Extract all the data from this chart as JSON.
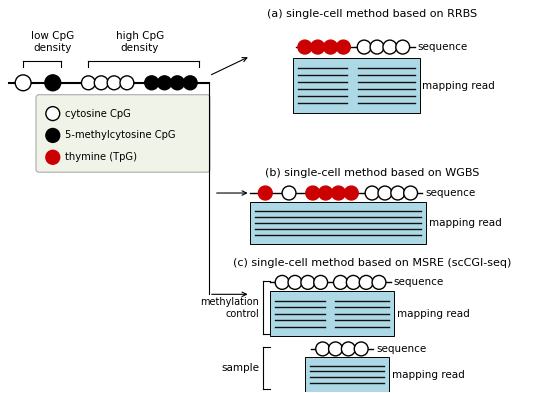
{
  "bg_color": "#ffffff",
  "title_a": "(a) single-cell method based on RRBS",
  "title_b": "(b) single-cell method based on WGBS",
  "title_c": "(c) single-cell method based on MSRE (scCGI-seq)",
  "legend_items": [
    {
      "label": "cytosine CpG",
      "fill": "white",
      "edge": "black"
    },
    {
      "label": "5-methylcytosine CpG",
      "fill": "black",
      "edge": "black"
    },
    {
      "label": "thymine (TpG)",
      "fill": "#cc0000",
      "edge": "#cc0000"
    }
  ],
  "low_cpg_label": "low CpG\ndensity",
  "high_cpg_label": "high CpG\ndensity",
  "sequence_label": "sequence",
  "mapping_label": "mapping read",
  "methylation_control_label": "methylation\ncontrol",
  "sample_label": "sample",
  "read_box_color": "#add8e6",
  "read_line_color": "#111111",
  "cpg_open_color": "white",
  "cpg_filled_color": "black",
  "cpg_red_color": "#cc0000",
  "legend_bg": "#f0f4e8",
  "legend_edge": "#aaaaaa"
}
